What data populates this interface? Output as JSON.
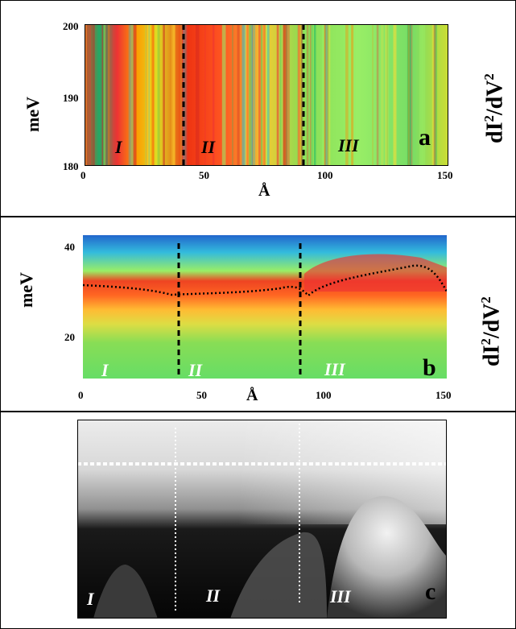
{
  "panel_a": {
    "ylabel": "meV",
    "xlabel": "Å",
    "right_label_base": "dI",
    "right_label_exp": "2",
    "right_label_mid": "/dV",
    "right_label_exp2": "2",
    "yticks": [
      "200",
      "190",
      "180"
    ],
    "xticks": [
      "0",
      "50",
      "100",
      "150"
    ],
    "regions": [
      "I",
      "II",
      "III"
    ],
    "letter": "a"
  },
  "panel_b": {
    "ylabel": "meV",
    "xlabel": "Å",
    "right_label_base": "dI",
    "right_label_exp": "2",
    "right_label_mid": "/dV",
    "right_label_exp2": "2",
    "yticks": [
      "40",
      "20"
    ],
    "xticks": [
      "0",
      "50",
      "100",
      "150"
    ],
    "regions": [
      "I",
      "II",
      "III"
    ],
    "letter": "b"
  },
  "panel_c": {
    "regions": [
      "I",
      "II",
      "III"
    ],
    "letter": "c"
  }
}
